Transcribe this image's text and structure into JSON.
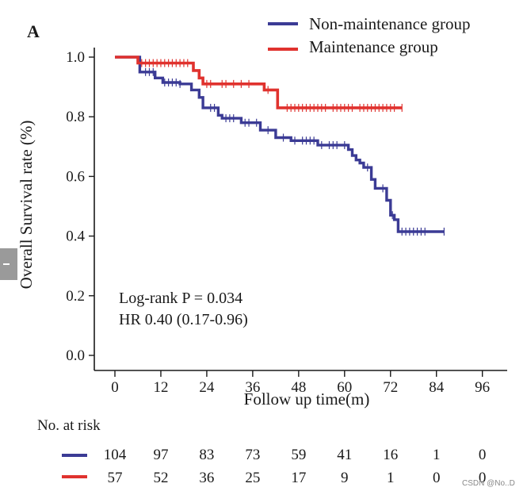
{
  "chart_data": {
    "type": "line",
    "panel_label": "A",
    "xlabel": "Follow up time(m)",
    "ylabel": "Overall Survival rate (%)",
    "xlim": [
      0,
      96
    ],
    "ylim": [
      0,
      1.0
    ],
    "x_ticks": [
      0,
      12,
      24,
      36,
      48,
      60,
      72,
      84,
      96
    ],
    "y_ticks": [
      0.0,
      0.2,
      0.4,
      0.6,
      0.8,
      1.0
    ],
    "y_tick_labels": [
      "0.0",
      "0.2",
      "0.4",
      "0.6",
      "0.8",
      "1.0"
    ],
    "legend": [
      {
        "label": "Non-maintenance group",
        "color": "#3b3b95"
      },
      {
        "label": "Maintenance group",
        "color": "#e0322e"
      }
    ],
    "annotations": [
      "Log-rank P = 0.034",
      "HR 0.40 (0.17-0.96)"
    ],
    "series": [
      {
        "name": "Non-maintenance group",
        "color": "#3b3b95",
        "steps": [
          [
            0,
            1.0
          ],
          [
            6.5,
            0.95
          ],
          [
            10.5,
            0.93
          ],
          [
            12.5,
            0.915
          ],
          [
            17,
            0.91
          ],
          [
            20,
            0.89
          ],
          [
            22,
            0.865
          ],
          [
            23,
            0.83
          ],
          [
            27,
            0.805
          ],
          [
            28,
            0.795
          ],
          [
            33,
            0.78
          ],
          [
            38,
            0.755
          ],
          [
            42,
            0.73
          ],
          [
            46,
            0.72
          ],
          [
            53,
            0.705
          ],
          [
            61,
            0.69
          ],
          [
            62,
            0.67
          ],
          [
            63,
            0.655
          ],
          [
            64,
            0.645
          ],
          [
            65,
            0.63
          ],
          [
            67,
            0.59
          ],
          [
            68,
            0.56
          ],
          [
            71,
            0.52
          ],
          [
            72,
            0.47
          ],
          [
            73,
            0.455
          ],
          [
            74,
            0.415
          ],
          [
            86,
            0.415
          ]
        ],
        "censor_times": [
          8,
          9,
          10,
          13,
          14,
          15,
          16,
          17,
          25,
          26,
          29,
          30,
          31,
          34,
          35,
          37,
          40,
          44,
          47,
          49,
          50,
          51,
          52,
          54,
          56,
          57,
          58,
          60,
          66,
          70,
          72.5,
          75,
          76,
          77,
          78,
          79,
          80,
          81,
          86
        ]
      },
      {
        "name": "Maintenance group",
        "color": "#e0322e",
        "steps": [
          [
            0,
            1.0
          ],
          [
            6,
            0.98
          ],
          [
            20.5,
            0.955
          ],
          [
            22,
            0.93
          ],
          [
            23,
            0.91
          ],
          [
            39,
            0.89
          ],
          [
            42.5,
            0.83
          ],
          [
            75,
            0.83
          ]
        ],
        "censor_times": [
          7,
          8,
          9,
          10,
          11,
          12,
          13,
          14,
          15,
          16,
          17,
          18,
          19,
          24,
          25,
          28,
          29,
          31,
          33,
          35,
          40,
          45,
          46,
          47,
          48,
          49,
          50,
          51,
          52,
          53,
          54,
          55,
          57,
          58,
          59,
          60,
          61,
          62,
          64,
          65,
          66,
          67,
          68,
          69,
          70,
          71,
          72,
          73,
          75
        ]
      }
    ],
    "risk_table": {
      "title": "No. at risk",
      "rows": [
        {
          "group": "Non-maintenance group",
          "color": "#3b3b95",
          "counts": [
            "104",
            "97",
            "83",
            "73",
            "59",
            "41",
            "16",
            "1",
            "0"
          ]
        },
        {
          "group": "Maintenance group",
          "color": "#e0322e",
          "counts": [
            "57",
            "52",
            "36",
            "25",
            "17",
            "9",
            "1",
            "0",
            "0"
          ]
        }
      ]
    }
  },
  "watermark": "CSDN @No..D"
}
